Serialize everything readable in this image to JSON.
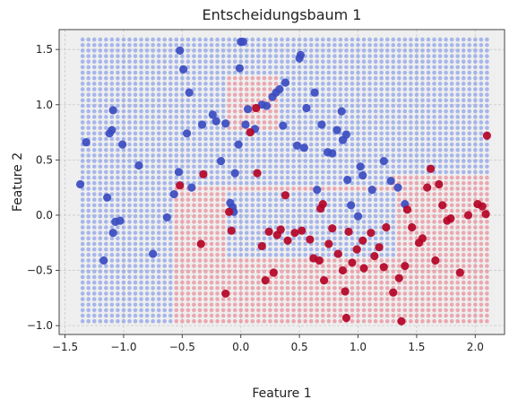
{
  "chart_data": {
    "type": "scatter",
    "title": "Entscheidungsbaum 1",
    "xlabel": "Feature 1",
    "ylabel": "Feature 2",
    "xlim": [
      -1.55,
      2.25
    ],
    "ylim": [
      -1.08,
      1.68
    ],
    "xticks": [
      -1.5,
      -1.0,
      -0.5,
      0.0,
      0.5,
      1.0,
      1.5,
      2.0
    ],
    "xtick_labels": [
      "−1.5",
      "−1.0",
      "−0.5",
      "0.0",
      "0.5",
      "1.0",
      "1.5",
      "2.0"
    ],
    "yticks": [
      -1.0,
      -0.5,
      0.0,
      0.5,
      1.0,
      1.5
    ],
    "ytick_labels": [
      "−1.0",
      "−0.5",
      "0.0",
      "0.5",
      "1.0",
      "1.5"
    ],
    "grid": true,
    "colors": {
      "class0": "#3b4cc0",
      "class1": "#b40426",
      "region0": "#8fa3e8",
      "region1": "#e8909c",
      "plot_bg": "#efefef"
    },
    "decision_grid": {
      "x_range": [
        -1.35,
        2.1
      ],
      "y_range": [
        -0.96,
        1.57
      ],
      "step": 0.05,
      "class1_regions": [
        {
          "x": [
            -0.55,
            2.1
          ],
          "y": [
            -0.96,
            0.25
          ]
        },
        {
          "x": [
            1.3,
            2.1
          ],
          "y": [
            -0.96,
            0.35
          ]
        },
        {
          "x": [
            -0.1,
            0.3
          ],
          "y": [
            0.75,
            1.25
          ]
        }
      ],
      "class0_regions": [
        {
          "x": [
            -0.1,
            1.3
          ],
          "y": [
            -0.4,
            0.2
          ]
        }
      ]
    },
    "series": [
      {
        "points": [
          [
            -1.37,
            0.28
          ],
          [
            -1.32,
            0.66
          ],
          [
            -1.17,
            -0.41
          ],
          [
            -1.14,
            0.16
          ],
          [
            -1.12,
            0.74
          ],
          [
            -1.1,
            0.77
          ],
          [
            -1.09,
            0.95
          ],
          [
            -1.09,
            -0.16
          ],
          [
            -1.07,
            -0.06
          ],
          [
            -1.03,
            -0.05
          ],
          [
            -1.01,
            0.64
          ],
          [
            -0.87,
            0.45
          ],
          [
            -0.75,
            -0.35
          ],
          [
            -0.63,
            -0.02
          ],
          [
            -0.57,
            0.19
          ],
          [
            -0.53,
            0.39
          ],
          [
            -0.52,
            1.49
          ],
          [
            -0.49,
            1.32
          ],
          [
            -0.46,
            0.74
          ],
          [
            -0.44,
            1.11
          ],
          [
            -0.42,
            0.25
          ],
          [
            -0.33,
            0.82
          ],
          [
            -0.24,
            0.91
          ],
          [
            -0.21,
            0.85
          ],
          [
            -0.17,
            0.49
          ],
          [
            -0.13,
            0.83
          ],
          [
            -0.09,
            0.11
          ],
          [
            -0.07,
            0.07
          ],
          [
            -0.06,
            0.03
          ],
          [
            -0.05,
            0.38
          ],
          [
            -0.02,
            0.64
          ],
          [
            -0.01,
            1.33
          ],
          [
            0.0,
            1.57
          ],
          [
            0.02,
            1.57
          ],
          [
            0.04,
            0.82
          ],
          [
            0.06,
            0.96
          ],
          [
            0.12,
            0.78
          ],
          [
            0.18,
            1.0
          ],
          [
            0.22,
            0.99
          ],
          [
            0.27,
            1.07
          ],
          [
            0.3,
            1.11
          ],
          [
            0.33,
            1.14
          ],
          [
            0.36,
            0.81
          ],
          [
            0.38,
            1.2
          ],
          [
            0.48,
            0.63
          ],
          [
            0.5,
            1.42
          ],
          [
            0.51,
            1.45
          ],
          [
            0.54,
            0.61
          ],
          [
            0.56,
            0.97
          ],
          [
            0.63,
            1.11
          ],
          [
            0.65,
            0.23
          ],
          [
            0.69,
            0.82
          ],
          [
            0.74,
            0.57
          ],
          [
            0.78,
            0.56
          ],
          [
            0.82,
            0.77
          ],
          [
            0.86,
            0.94
          ],
          [
            0.87,
            0.68
          ],
          [
            0.9,
            0.73
          ],
          [
            0.91,
            0.32
          ],
          [
            0.94,
            0.09
          ],
          [
            1.0,
            -0.01
          ],
          [
            1.02,
            0.44
          ],
          [
            1.04,
            0.36
          ],
          [
            1.12,
            0.23
          ],
          [
            1.22,
            0.49
          ],
          [
            1.28,
            0.31
          ],
          [
            1.34,
            0.25
          ],
          [
            1.4,
            0.1
          ]
        ]
      },
      {
        "points": [
          [
            -0.52,
            0.27
          ],
          [
            -0.34,
            -0.26
          ],
          [
            -0.32,
            0.37
          ],
          [
            -0.13,
            -0.71
          ],
          [
            -0.1,
            0.03
          ],
          [
            -0.08,
            -0.14
          ],
          [
            0.08,
            0.75
          ],
          [
            0.13,
            0.97
          ],
          [
            0.14,
            0.38
          ],
          [
            0.18,
            -0.28
          ],
          [
            0.21,
            -0.59
          ],
          [
            0.24,
            -0.15
          ],
          [
            0.28,
            -0.52
          ],
          [
            0.31,
            -0.18
          ],
          [
            0.34,
            -0.13
          ],
          [
            0.38,
            0.18
          ],
          [
            0.4,
            -0.23
          ],
          [
            0.46,
            -0.16
          ],
          [
            0.52,
            -0.14
          ],
          [
            0.59,
            -0.22
          ],
          [
            0.62,
            -0.39
          ],
          [
            0.67,
            -0.41
          ],
          [
            0.68,
            0.06
          ],
          [
            0.7,
            0.1
          ],
          [
            0.71,
            -0.59
          ],
          [
            0.75,
            -0.26
          ],
          [
            0.78,
            -0.12
          ],
          [
            0.83,
            -0.35
          ],
          [
            0.87,
            -0.5
          ],
          [
            0.89,
            -0.69
          ],
          [
            0.9,
            -0.93
          ],
          [
            0.92,
            -0.15
          ],
          [
            0.95,
            -0.43
          ],
          [
            0.99,
            -0.31
          ],
          [
            1.04,
            -0.23
          ],
          [
            1.05,
            -0.48
          ],
          [
            1.11,
            -0.16
          ],
          [
            1.14,
            -0.37
          ],
          [
            1.18,
            -0.29
          ],
          [
            1.22,
            -0.47
          ],
          [
            1.24,
            -0.11
          ],
          [
            1.3,
            -0.7
          ],
          [
            1.35,
            -0.57
          ],
          [
            1.37,
            -0.96
          ],
          [
            1.4,
            -0.46
          ],
          [
            1.42,
            0.05
          ],
          [
            1.46,
            -0.11
          ],
          [
            1.52,
            -0.25
          ],
          [
            1.55,
            -0.21
          ],
          [
            1.59,
            0.25
          ],
          [
            1.62,
            0.42
          ],
          [
            1.66,
            -0.41
          ],
          [
            1.69,
            0.28
          ],
          [
            1.72,
            0.09
          ],
          [
            1.76,
            -0.05
          ],
          [
            1.79,
            -0.03
          ],
          [
            1.87,
            -0.52
          ],
          [
            1.94,
            0.0
          ],
          [
            2.02,
            0.1
          ],
          [
            2.06,
            0.08
          ],
          [
            2.09,
            0.01
          ],
          [
            2.1,
            0.72
          ]
        ]
      }
    ]
  }
}
